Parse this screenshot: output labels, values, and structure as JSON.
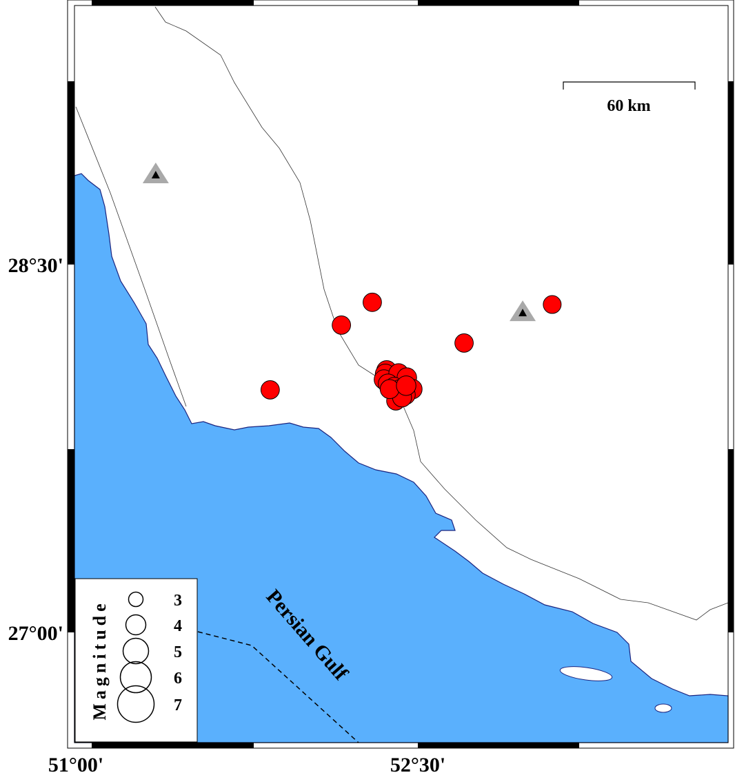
{
  "map": {
    "extent": {
      "lon_min": 51.0,
      "lon_max": 53.855,
      "lat_min": 26.55,
      "lat_max": 29.556
    },
    "x_ticks": [
      {
        "value": 51.0,
        "label": "51°00'"
      },
      {
        "value": 52.5,
        "label": "52°30'"
      }
    ],
    "y_ticks": [
      {
        "value": 28.5,
        "label": "28°30'"
      },
      {
        "value": 27.0,
        "label": "27°00'"
      }
    ],
    "sea_label": "Persian Gulf",
    "scale_bar": {
      "label": "60 km"
    },
    "colors": {
      "sea": "#5ab0fd",
      "land": "#ffffff",
      "coast": "#1a237e",
      "event": "#ff0000",
      "station": "#000000",
      "station_halo": "#a9a9a9"
    }
  },
  "legend": {
    "title": "Magnitude",
    "items": [
      {
        "mag": 3,
        "label": "3"
      },
      {
        "mag": 4,
        "label": "4"
      },
      {
        "mag": 5,
        "label": "5"
      },
      {
        "mag": 6,
        "label": "6"
      },
      {
        "mag": 7,
        "label": "7"
      }
    ]
  },
  "events": [
    {
      "lon": 52.301,
      "lat": 28.346,
      "mag": 3.6
    },
    {
      "lon": 52.166,
      "lat": 28.253,
      "mag": 3.6
    },
    {
      "lon": 52.702,
      "lat": 28.18,
      "mag": 3.6
    },
    {
      "lon": 53.087,
      "lat": 28.337,
      "mag": 3.5
    },
    {
      "lon": 51.855,
      "lat": 27.989,
      "mag": 3.6
    },
    {
      "lon": 52.364,
      "lat": 28.067,
      "mag": 3.9
    },
    {
      "lon": 52.358,
      "lat": 28.053,
      "mag": 3.9
    },
    {
      "lon": 52.352,
      "lat": 28.031,
      "mag": 3.8
    },
    {
      "lon": 52.416,
      "lat": 28.056,
      "mag": 3.8
    },
    {
      "lon": 52.452,
      "lat": 28.039,
      "mag": 3.8
    },
    {
      "lon": 52.37,
      "lat": 28.014,
      "mag": 3.8
    },
    {
      "lon": 52.397,
      "lat": 28.0,
      "mag": 3.8
    },
    {
      "lon": 52.425,
      "lat": 27.992,
      "mag": 3.8
    },
    {
      "lon": 52.476,
      "lat": 27.992,
      "mag": 3.8
    },
    {
      "lon": 52.446,
      "lat": 27.969,
      "mag": 3.8
    },
    {
      "lon": 52.404,
      "lat": 27.944,
      "mag": 3.6
    },
    {
      "lon": 52.431,
      "lat": 27.958,
      "mag": 3.7
    },
    {
      "lon": 52.377,
      "lat": 27.992,
      "mag": 3.7
    },
    {
      "lon": 52.449,
      "lat": 28.006,
      "mag": 3.8
    }
  ],
  "stations": [
    {
      "lon": 51.355,
      "lat": 28.868
    },
    {
      "lon": 52.958,
      "lat": 28.306
    }
  ]
}
